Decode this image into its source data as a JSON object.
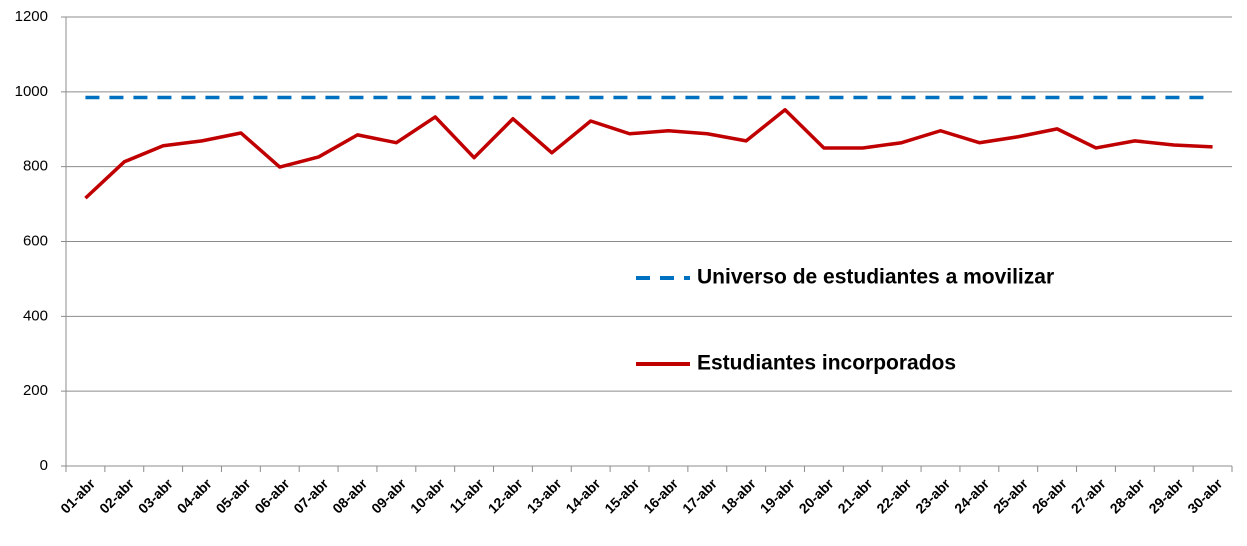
{
  "chart_data": {
    "type": "line",
    "categories": [
      "01-abr",
      "02-abr",
      "03-abr",
      "04-abr",
      "05-abr",
      "06-abr",
      "07-abr",
      "08-abr",
      "09-abr",
      "10-abr",
      "11-abr",
      "12-abr",
      "13-abr",
      "14-abr",
      "15-abr",
      "16-abr",
      "17-abr",
      "18-abr",
      "19-abr",
      "20-abr",
      "21-abr",
      "22-abr",
      "23-abr",
      "24-abr",
      "25-abr",
      "26-abr",
      "27-abr",
      "28-abr",
      "29-abr",
      "30-abr"
    ],
    "series": [
      {
        "name": "Universo de estudiantes a movilizar",
        "color": "#0070c0",
        "style": "dashed",
        "values": [
          985,
          985,
          985,
          985,
          985,
          985,
          985,
          985,
          985,
          985,
          985,
          985,
          985,
          985,
          985,
          985,
          985,
          985,
          985,
          985,
          985,
          985,
          985,
          985,
          985,
          985,
          985,
          985,
          985,
          985
        ]
      },
      {
        "name": "Estudiantes incorporados",
        "color": "#c00000",
        "style": "solid",
        "values": [
          716,
          813,
          856,
          869,
          890,
          799,
          826,
          885,
          864,
          933,
          824,
          928,
          837,
          922,
          888,
          896,
          888,
          869,
          952,
          850,
          850,
          864,
          896,
          864,
          880,
          901,
          850,
          869,
          858,
          853
        ]
      }
    ],
    "ylim": [
      0,
      1200
    ],
    "yticks": [
      0,
      200,
      400,
      600,
      800,
      1000,
      1200
    ],
    "grid": true
  }
}
